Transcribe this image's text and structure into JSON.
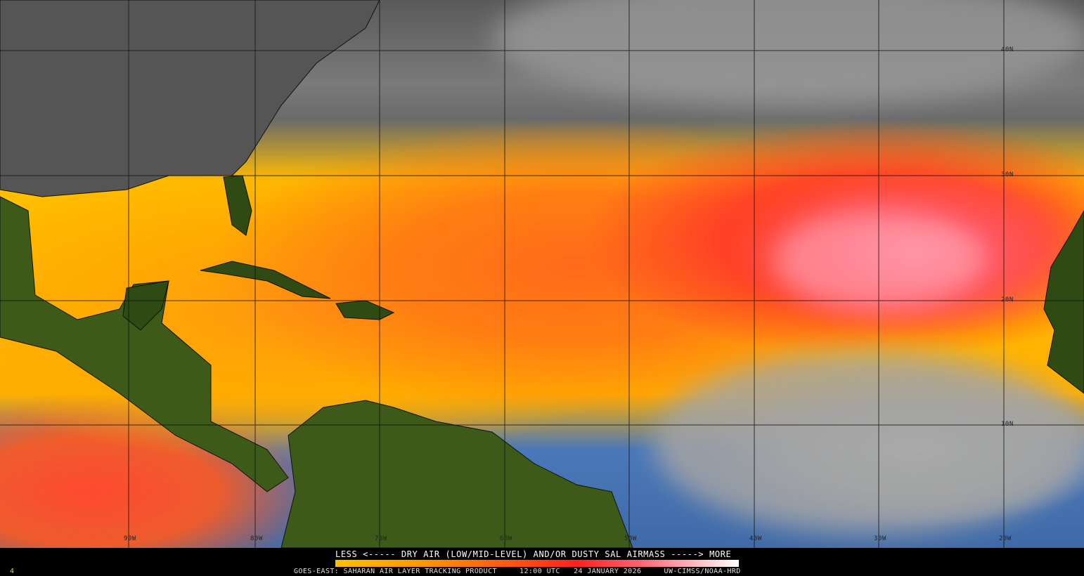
{
  "map": {
    "product": "GOES-EAST: SAHARAN AIR LAYER TRACKING PRODUCT",
    "time": "12:00 UTC",
    "date": "24 JANUARY 2026",
    "credit": "UW-CIMSS/NOAA-HRD",
    "frame": "4",
    "legend": {
      "title": "LESS <----- DRY AIR (LOW/MID-LEVEL) AND/OR DUSTY SAL AIRMASS -----> MORE",
      "colors": [
        "#ffc000",
        "#ff9a00",
        "#ff6010",
        "#ff2020",
        "#ff6070",
        "#ffb0b8",
        "#ffffff"
      ]
    },
    "longitude_labels": [
      "90W",
      "80W",
      "70W",
      "60W",
      "50W",
      "40W",
      "30W",
      "20W"
    ],
    "latitude_labels": [
      "40N",
      "30N",
      "20N",
      "10N"
    ],
    "colors": {
      "land": "#2f4a12",
      "ocean": "#3f6aa8",
      "clouds": "#8a8a8a"
    }
  }
}
